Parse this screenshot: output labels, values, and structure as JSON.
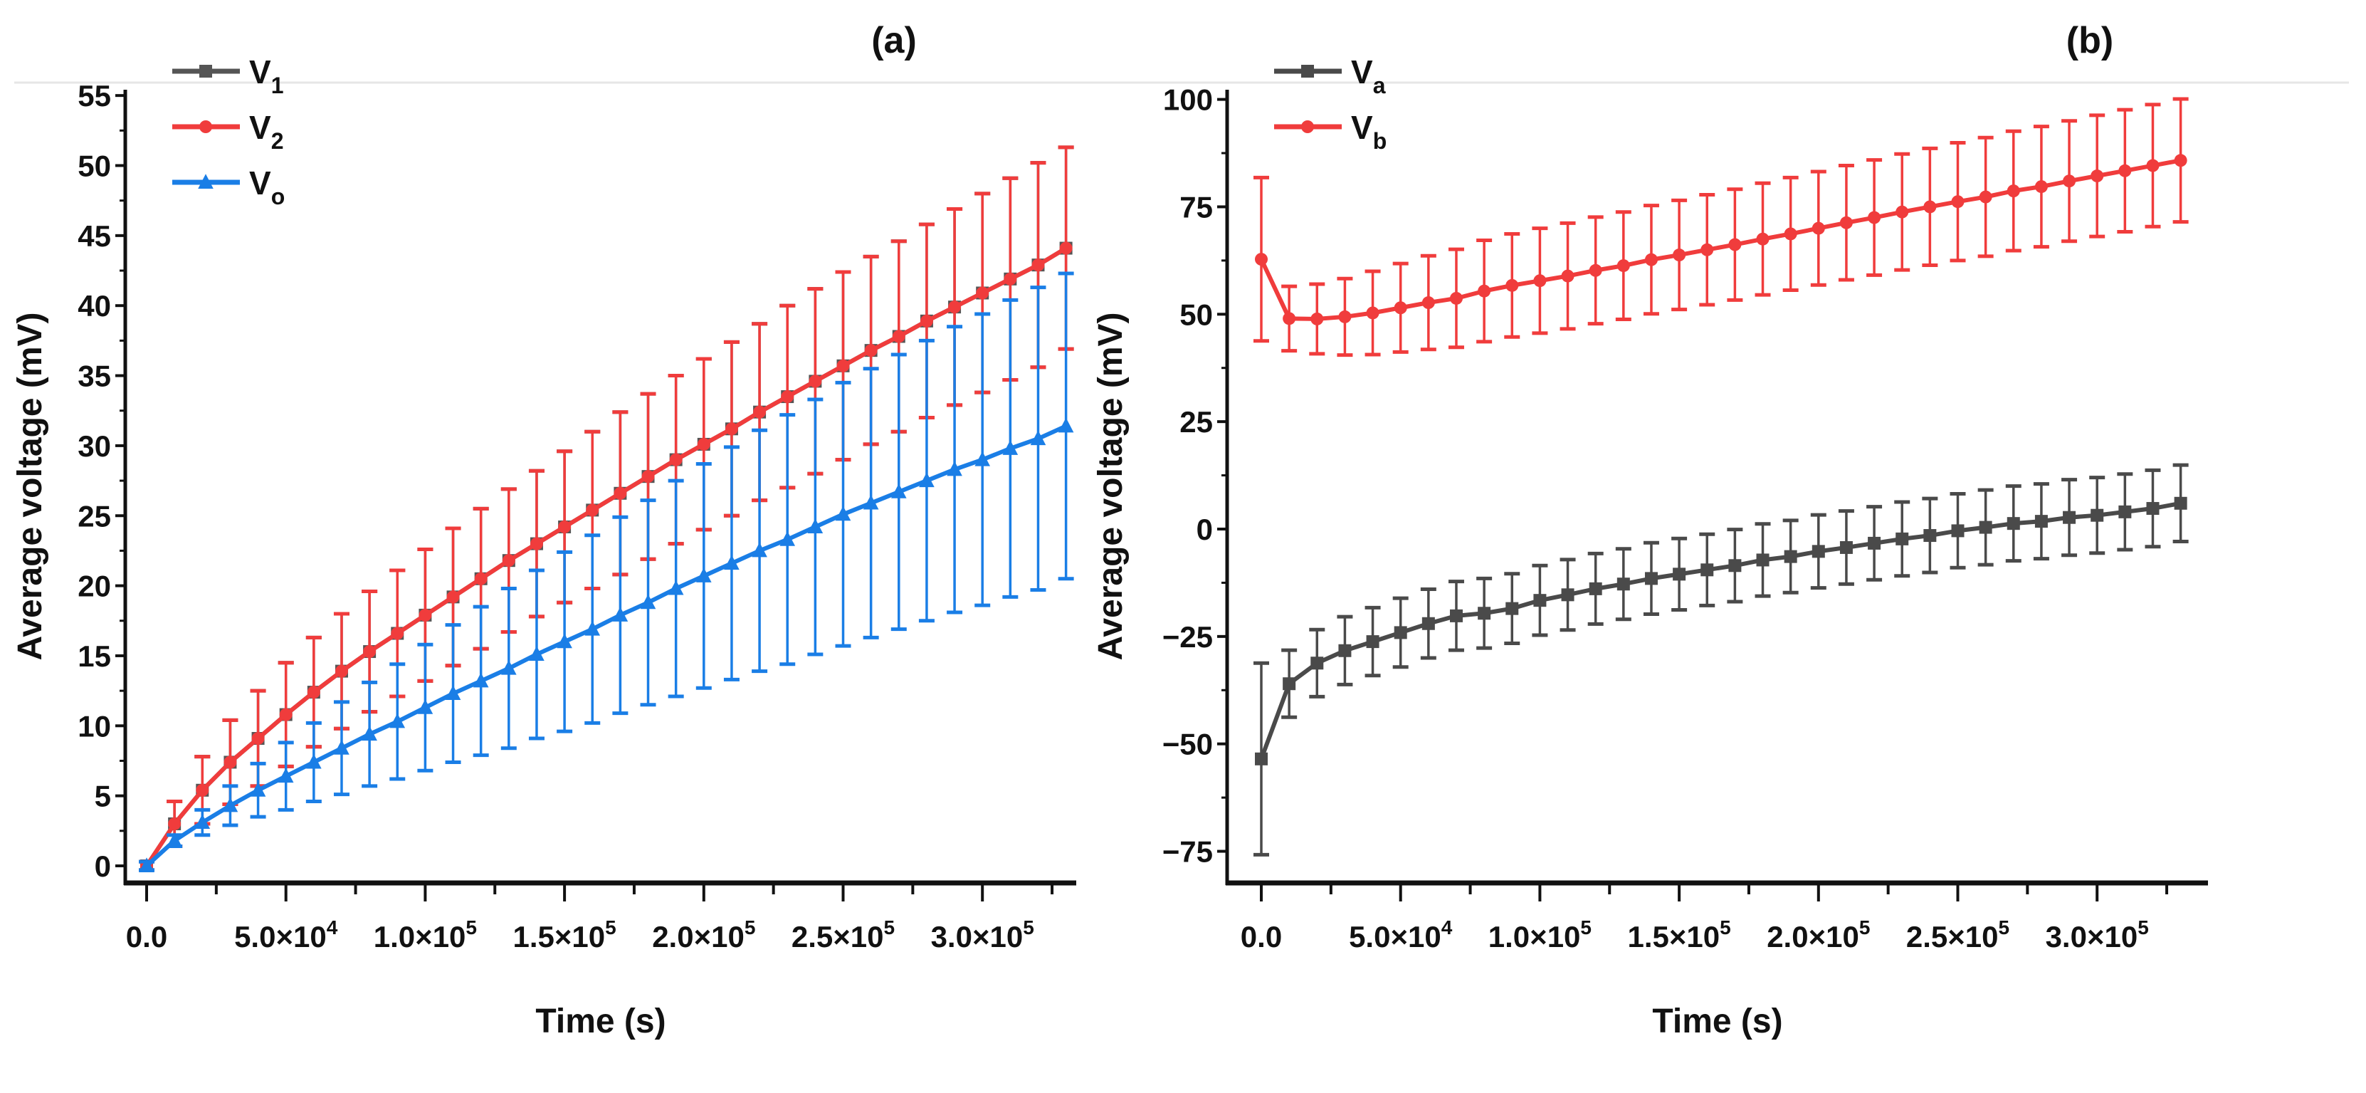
{
  "chart_data": [
    {
      "type": "line",
      "panel_label": "(a)",
      "xlabel": "Time (s)",
      "ylabel": "Average voltage (mV)",
      "xlim": [
        -5000,
        335000
      ],
      "ylim": [
        -2,
        55
      ],
      "yticks": [
        "0",
        "5",
        "10",
        "15",
        "20",
        "25",
        "30",
        "35",
        "40",
        "45",
        "50",
        "55"
      ],
      "xticks": [
        {
          "base": "0.0",
          "exp": ""
        },
        {
          "base": "5.0×10",
          "exp": "4"
        },
        {
          "base": "1.0×10",
          "exp": "5"
        },
        {
          "base": "1.5×10",
          "exp": "5"
        },
        {
          "base": "2.0×10",
          "exp": "5"
        },
        {
          "base": "2.5×10",
          "exp": "5"
        },
        {
          "base": "3.0×10",
          "exp": "5"
        }
      ],
      "legend_position": "top-left",
      "grid": false,
      "x": [
        0,
        10000,
        20000,
        30000,
        40000,
        50000,
        60000,
        70000,
        80000,
        90000,
        100000,
        110000,
        120000,
        130000,
        140000,
        150000,
        160000,
        170000,
        180000,
        190000,
        200000,
        210000,
        220000,
        230000,
        240000,
        250000,
        260000,
        270000,
        280000,
        290000,
        300000,
        310000,
        320000,
        330000
      ],
      "series": [
        {
          "name": "V",
          "sub": "1",
          "color": "#555555",
          "marker": "square",
          "values": [
            0,
            3.0,
            5.4,
            7.4,
            9.1,
            10.8,
            12.4,
            13.9,
            15.3,
            16.6,
            17.9,
            19.2,
            20.5,
            21.8,
            23.0,
            24.2,
            25.4,
            26.6,
            27.8,
            29.0,
            30.1,
            31.2,
            32.4,
            33.5,
            34.6,
            35.7,
            36.8,
            37.8,
            38.9,
            39.9,
            40.9,
            41.9,
            42.9,
            44.1
          ],
          "errors": [
            0.3,
            1.6,
            2.4,
            3.0,
            3.4,
            3.7,
            3.9,
            4.1,
            4.3,
            4.5,
            4.7,
            4.9,
            5.0,
            5.1,
            5.2,
            5.4,
            5.6,
            5.8,
            5.9,
            6.0,
            6.1,
            6.2,
            6.3,
            6.5,
            6.6,
            6.7,
            6.7,
            6.8,
            6.9,
            7.0,
            7.1,
            7.2,
            7.3,
            7.2
          ]
        },
        {
          "name": "V",
          "sub": "2",
          "color": "#f03c3c",
          "marker": "circle",
          "values": [
            0,
            3.0,
            5.4,
            7.4,
            9.1,
            10.8,
            12.4,
            13.9,
            15.3,
            16.6,
            17.9,
            19.2,
            20.5,
            21.8,
            23.0,
            24.2,
            25.4,
            26.6,
            27.8,
            29.0,
            30.1,
            31.2,
            32.4,
            33.5,
            34.6,
            35.7,
            36.8,
            37.8,
            38.9,
            39.9,
            40.9,
            41.9,
            42.9,
            44.1
          ],
          "errors": [
            0.3,
            1.6,
            2.4,
            3.0,
            3.4,
            3.7,
            3.9,
            4.1,
            4.3,
            4.5,
            4.7,
            4.9,
            5.0,
            5.1,
            5.2,
            5.4,
            5.6,
            5.8,
            5.9,
            6.0,
            6.1,
            6.2,
            6.3,
            6.5,
            6.6,
            6.7,
            6.7,
            6.8,
            6.9,
            7.0,
            7.1,
            7.2,
            7.3,
            7.2
          ]
        },
        {
          "name": "V",
          "sub": "o",
          "color": "#1a7ee6",
          "marker": "triangle",
          "values": [
            0,
            1.8,
            3.1,
            4.3,
            5.4,
            6.4,
            7.4,
            8.4,
            9.4,
            10.3,
            11.3,
            12.3,
            13.2,
            14.1,
            15.1,
            16.0,
            16.9,
            17.9,
            18.8,
            19.8,
            20.7,
            21.6,
            22.5,
            23.3,
            24.2,
            25.1,
            25.9,
            26.7,
            27.5,
            28.3,
            29.0,
            29.8,
            30.5,
            31.4
          ],
          "errors": [
            0.3,
            0.4,
            0.9,
            1.4,
            1.9,
            2.4,
            2.8,
            3.3,
            3.7,
            4.1,
            4.5,
            4.9,
            5.3,
            5.7,
            6.0,
            6.4,
            6.7,
            7.0,
            7.3,
            7.7,
            8.0,
            8.3,
            8.6,
            8.9,
            9.1,
            9.4,
            9.6,
            9.8,
            10.0,
            10.2,
            10.4,
            10.6,
            10.8,
            10.9
          ]
        }
      ]
    },
    {
      "type": "line",
      "panel_label": "(b)",
      "xlabel": "Time (s)",
      "ylabel": "Average voltage (mV)",
      "xlim": [
        -5000,
        335000
      ],
      "ylim": [
        -82,
        100
      ],
      "yticks": [
        "-75",
        "-50",
        "-25",
        "0",
        "25",
        "50",
        "75",
        "100"
      ],
      "xticks": [
        {
          "base": "0.0",
          "exp": ""
        },
        {
          "base": "5.0×10",
          "exp": "4"
        },
        {
          "base": "1.0×10",
          "exp": "5"
        },
        {
          "base": "1.5×10",
          "exp": "5"
        },
        {
          "base": "2.0×10",
          "exp": "5"
        },
        {
          "base": "2.5×10",
          "exp": "5"
        },
        {
          "base": "3.0×10",
          "exp": "5"
        }
      ],
      "legend_position": "top-left",
      "grid": false,
      "x": [
        0,
        10000,
        20000,
        30000,
        40000,
        50000,
        60000,
        70000,
        80000,
        90000,
        100000,
        110000,
        120000,
        130000,
        140000,
        150000,
        160000,
        170000,
        180000,
        190000,
        200000,
        210000,
        220000,
        230000,
        240000,
        250000,
        260000,
        270000,
        280000,
        290000,
        300000,
        310000,
        320000,
        330000
      ],
      "series": [
        {
          "name": "V",
          "sub": "a",
          "color": "#4a4a4a",
          "marker": "square",
          "values": [
            -53.5,
            -36,
            -31.2,
            -28.3,
            -26.2,
            -24.1,
            -22,
            -20.2,
            -19.6,
            -18.5,
            -16.6,
            -15.3,
            -13.9,
            -12.8,
            -11.5,
            -10.5,
            -9.5,
            -8.5,
            -7.2,
            -6.4,
            -5.2,
            -4.3,
            -3.3,
            -2.3,
            -1.5,
            -0.4,
            0.4,
            1.3,
            1.8,
            2.7,
            3.2,
            4.0,
            4.8,
            6.0
          ],
          "errors": [
            22.3,
            7.8,
            7.8,
            7.9,
            7.9,
            8.0,
            8.0,
            8.0,
            8.1,
            8.1,
            8.1,
            8.2,
            8.2,
            8.2,
            8.3,
            8.3,
            8.3,
            8.4,
            8.4,
            8.4,
            8.5,
            8.5,
            8.5,
            8.6,
            8.6,
            8.6,
            8.7,
            8.7,
            8.7,
            8.8,
            8.8,
            8.8,
            8.9,
            8.9
          ]
        },
        {
          "name": "V",
          "sub": "b",
          "color": "#f03c3c",
          "marker": "circle",
          "values": [
            62.8,
            49,
            48.9,
            49.4,
            50.3,
            51.5,
            52.7,
            53.7,
            55.4,
            56.7,
            57.8,
            58.9,
            60.2,
            61.3,
            62.7,
            63.8,
            65,
            66.2,
            67.5,
            68.7,
            70,
            71.3,
            72.5,
            73.8,
            75,
            76.2,
            77.3,
            78.7,
            79.7,
            81,
            82.2,
            83.4,
            84.6,
            85.8
          ],
          "errors": [
            19,
            7.5,
            8.1,
            8.9,
            9.7,
            10.3,
            10.9,
            11.4,
            11.8,
            12.0,
            12.2,
            12.3,
            12.4,
            12.5,
            12.6,
            12.7,
            12.8,
            12.9,
            13.0,
            13.1,
            13.2,
            13.3,
            13.4,
            13.5,
            13.6,
            13.7,
            13.8,
            13.9,
            14.0,
            14.0,
            14.1,
            14.2,
            14.2,
            14.3
          ]
        }
      ]
    }
  ]
}
